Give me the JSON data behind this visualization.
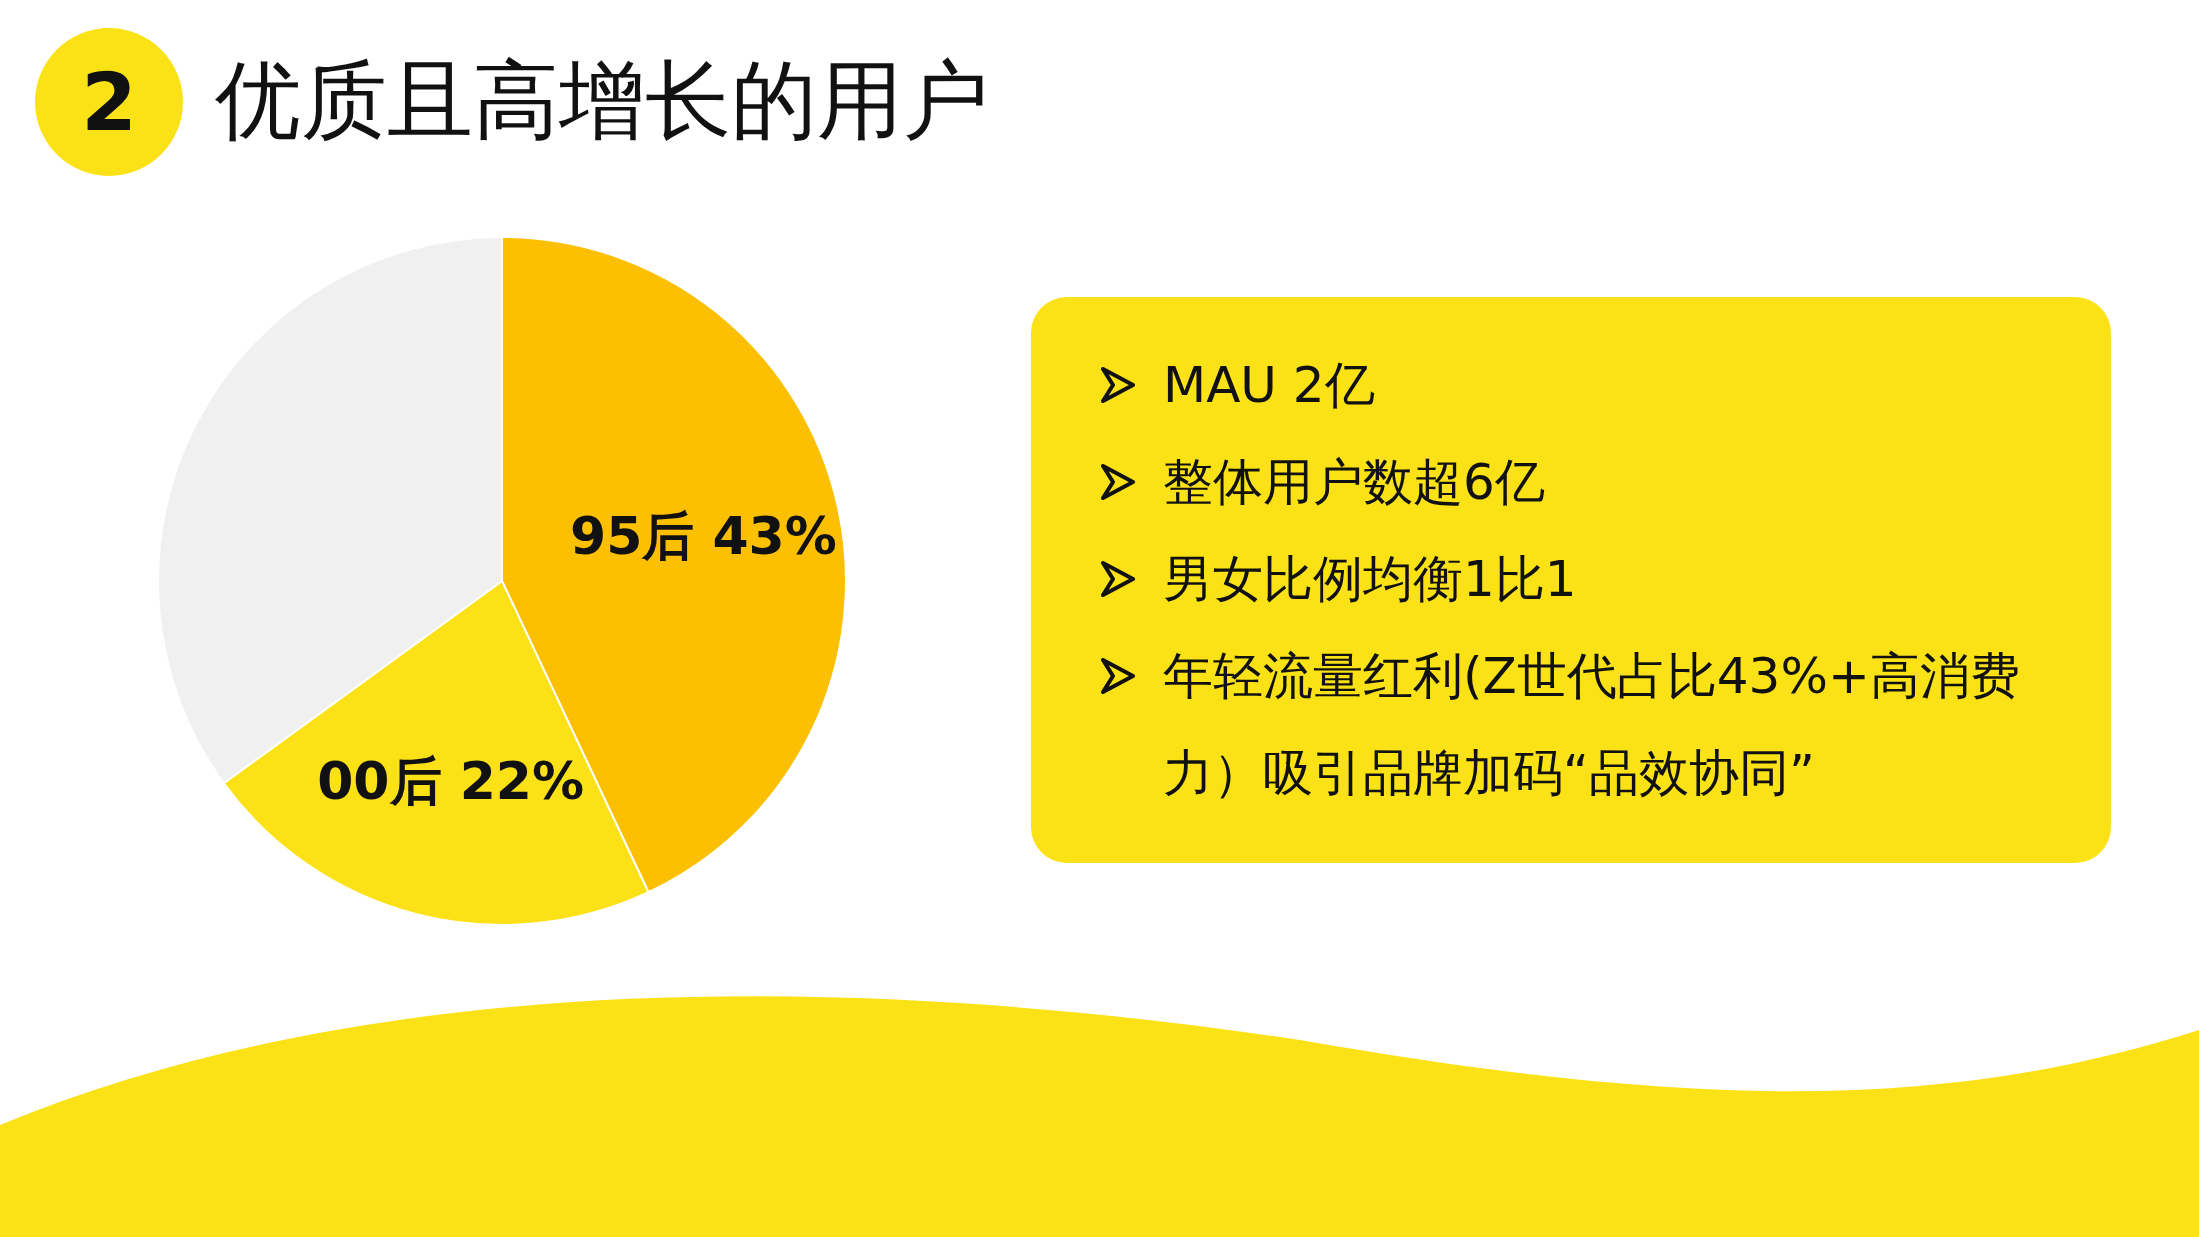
{
  "chart_data": [
    {
      "type": "pie",
      "title": "优质且高增长的用户",
      "annotations": [
        "2"
      ],
      "categories": [
        "95后",
        "00后",
        null
      ],
      "values": [
        43,
        22,
        35
      ],
      "colors": [
        "#fdc000",
        "#fbe116",
        "#f0f0f0"
      ],
      "value_labels": [
        "43%",
        "22%",
        null
      ]
    },
    {
      "type": "other",
      "annotations": [
        "MAU 2亿",
        "整体用户数超6亿",
        "男女比例均衡1比1",
        "年轻流量红利(Z世代占比43%+高消费力）吸引品牌加码“品效协同”"
      ]
    }
  ]
}
